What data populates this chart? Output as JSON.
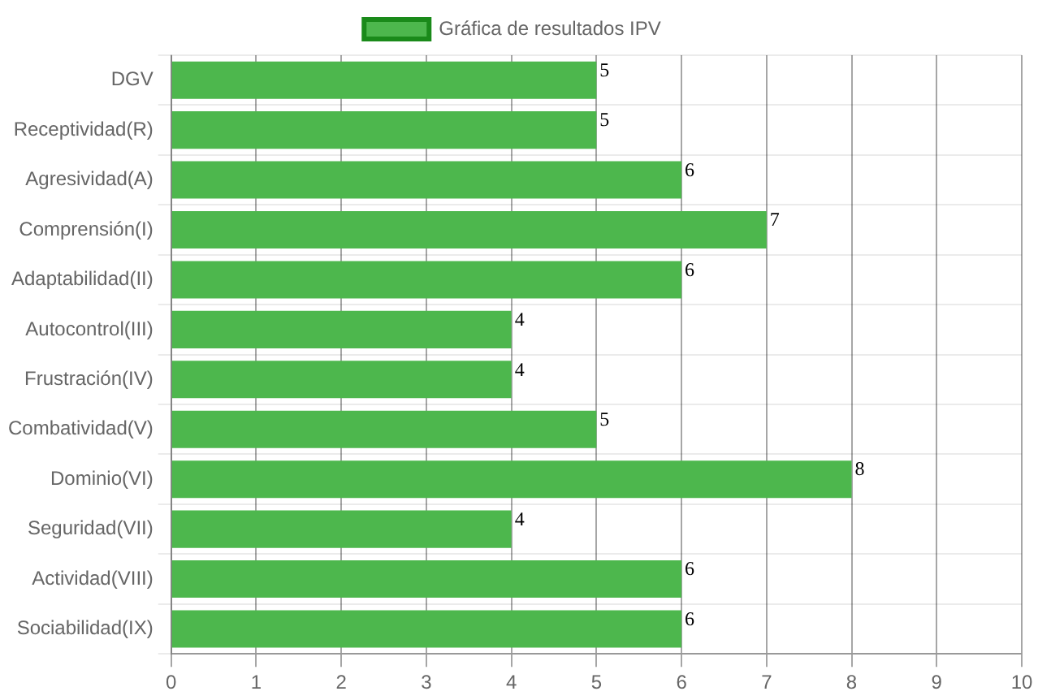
{
  "chart_data": {
    "type": "bar",
    "orientation": "horizontal",
    "categories": [
      "DGV",
      "Receptividad(R)",
      "Agresividad(A)",
      "Comprensión(I)",
      "Adaptabilidad(II)",
      "Autocontrol(III)",
      "Frustración(IV)",
      "Combatividad(V)",
      "Dominio(VI)",
      "Seguridad(VII)",
      "Actividad(VIII)",
      "Sociabilidad(IX)"
    ],
    "series": [
      {
        "name": "Gráfica de resultados IPV",
        "color": "#4db74d",
        "values": [
          5,
          5,
          6,
          7,
          6,
          4,
          4,
          5,
          8,
          4,
          6,
          6
        ]
      }
    ],
    "xlim": [
      0,
      10
    ],
    "xticks": [
      0,
      1,
      2,
      3,
      4,
      5,
      6,
      7,
      8,
      9,
      10
    ],
    "grid": true,
    "legend": "top",
    "data_labels": true
  }
}
